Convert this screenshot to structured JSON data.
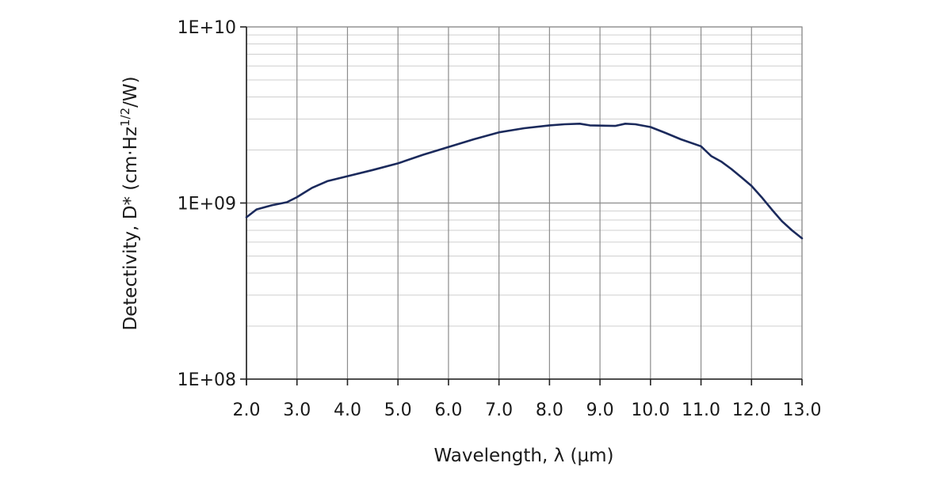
{
  "chart_data": {
    "type": "line",
    "xlabel": "Wavelength, λ (µm)",
    "ylabel_main": "Detectivity, D* (cm·Hz",
    "ylabel_sup": "1/2",
    "ylabel_tail": "/W)",
    "x_range": [
      2.0,
      13.0
    ],
    "y_range": [
      100000000,
      10000000000
    ],
    "y_scale": "log",
    "grid": true,
    "x_ticks": [
      2.0,
      3.0,
      4.0,
      5.0,
      6.0,
      7.0,
      8.0,
      9.0,
      10.0,
      11.0,
      12.0,
      13.0
    ],
    "x_tick_labels": [
      "2.0",
      "3.0",
      "4.0",
      "5.0",
      "6.0",
      "7.0",
      "8.0",
      "9.0",
      "10.0",
      "11.0",
      "12.0",
      "13.0"
    ],
    "y_ticks": [
      100000000,
      1000000000,
      10000000000
    ],
    "y_tick_labels": [
      "1E+08",
      "1E+09",
      "1E+10"
    ],
    "line_color": "#1b2a5c",
    "series": [
      {
        "x": [
          2.0,
          2.2,
          2.5,
          2.8,
          3.0,
          3.3,
          3.6,
          4.0,
          4.5,
          5.0,
          5.5,
          6.0,
          6.5,
          7.0,
          7.5,
          8.0,
          8.3,
          8.6,
          8.8,
          9.0,
          9.3,
          9.5,
          9.7,
          10.0,
          10.3,
          10.6,
          11.0,
          11.2,
          11.4,
          11.6,
          11.8,
          12.0,
          12.2,
          12.4,
          12.6,
          12.8,
          13.0
        ],
        "y": [
          830000000,
          920000000,
          970000000,
          1010000000,
          1080000000,
          1220000000,
          1330000000,
          1420000000,
          1540000000,
          1680000000,
          1880000000,
          2080000000,
          2300000000,
          2520000000,
          2660000000,
          2760000000,
          2800000000,
          2820000000,
          2760000000,
          2750000000,
          2740000000,
          2820000000,
          2800000000,
          2700000000,
          2500000000,
          2300000000,
          2100000000,
          1850000000,
          1720000000,
          1560000000,
          1400000000,
          1250000000,
          1080000000,
          920000000,
          790000000,
          700000000,
          630000000
        ]
      }
    ]
  }
}
